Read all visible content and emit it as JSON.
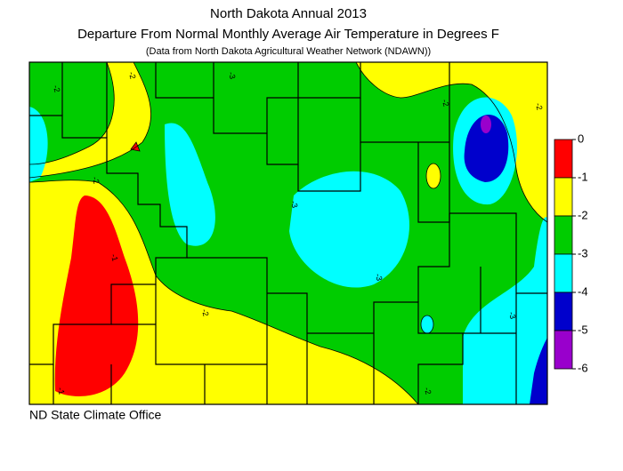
{
  "header": {
    "title": "North Dakota Annual 2013",
    "subtitle": "Departure From Normal Monthly Average Air Temperature in Degrees F",
    "source": "(Data from North Dakota Agricultural Weather Network (NDAWN))"
  },
  "legend": {
    "ticks": [
      0,
      -1,
      -2,
      -3,
      -4,
      -5,
      -6
    ],
    "colors": [
      "#ff0000",
      "#ffff00",
      "#00cc00",
      "#00ffff",
      "#0000cc",
      "#9900cc"
    ]
  },
  "contour_labels": [
    "-2",
    "-2",
    "-2",
    "-2",
    "-2",
    "-2",
    "-2",
    "-3",
    "-3",
    "-3",
    "-3",
    "-1",
    "-1"
  ],
  "footer": "ND State Climate Office"
}
